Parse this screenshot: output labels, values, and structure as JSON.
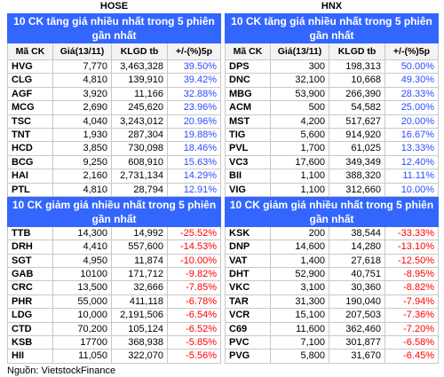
{
  "colors": {
    "title_bar": "#3366ff",
    "title_text": "#ffffff"
  },
  "chart_data": [
    {
      "type": "table",
      "exchange": "HOSE",
      "columns": [
        "Mã CK",
        "Giá(13/11)",
        "KLGD tb",
        "+/-(%)5p"
      ],
      "sections": [
        {
          "title": "10 CK tăng giá nhiều nhất trong 5 phiên\ngần nhất",
          "value_color": "#2b4cff",
          "rows": [
            [
              "HVG",
              "7,770",
              "3,463,328",
              "39.50%"
            ],
            [
              "CLG",
              "4,810",
              "139,910",
              "39.42%"
            ],
            [
              "AGF",
              "3,920",
              "11,166",
              "32.88%"
            ],
            [
              "MCG",
              "2,690",
              "245,620",
              "23.96%"
            ],
            [
              "TSC",
              "4,040",
              "3,243,012",
              "20.96%"
            ],
            [
              "TNT",
              "1,930",
              "287,304",
              "19.88%"
            ],
            [
              "HCD",
              "3,850",
              "730,098",
              "18.46%"
            ],
            [
              "BCG",
              "9,250",
              "608,910",
              "15.63%"
            ],
            [
              "HAI",
              "2,160",
              "2,731,134",
              "14.29%"
            ],
            [
              "PTL",
              "4,810",
              "28,794",
              "12.91%"
            ]
          ]
        },
        {
          "title": "10 CK giảm giá nhiều nhất trong 5 phiên\ngần nhất",
          "value_color": "#ff0000",
          "rows": [
            [
              "TTB",
              "14,300",
              "14,992",
              "-25.52%"
            ],
            [
              "DRH",
              "4,410",
              "557,600",
              "-14.53%"
            ],
            [
              "SGT",
              "4,950",
              "11,874",
              "-10.00%"
            ],
            [
              "GAB",
              "10100",
              "171,712",
              "-9.82%"
            ],
            [
              "CRC",
              "13,500",
              "32,666",
              "-7.85%"
            ],
            [
              "PHR",
              "55,000",
              "411,118",
              "-6.78%"
            ],
            [
              "LDG",
              "10,000",
              "2,191,506",
              "-6.54%"
            ],
            [
              "CTD",
              "70,200",
              "105,124",
              "-6.52%"
            ],
            [
              "KSB",
              "17700",
              "368,938",
              "-5.85%"
            ],
            [
              "HII",
              "11,050",
              "322,070",
              "-5.56%"
            ]
          ]
        }
      ]
    },
    {
      "type": "table",
      "exchange": "HNX",
      "columns": [
        "Mã CK",
        "Giá(13/11)",
        "KLGD tb",
        "+/-(%)5p"
      ],
      "sections": [
        {
          "title": "10 CK tăng giá nhiều nhất trong 5 phiên\ngần nhất",
          "value_color": "#2b4cff",
          "rows": [
            [
              "DPS",
              "300",
              "198,313",
              "50.00%"
            ],
            [
              "DNC",
              "32,100",
              "10,668",
              "49.30%"
            ],
            [
              "MBG",
              "53,900",
              "266,390",
              "28.33%"
            ],
            [
              "ACM",
              "500",
              "54,582",
              "25.00%"
            ],
            [
              "MST",
              "4,200",
              "517,627",
              "20.00%"
            ],
            [
              "TIG",
              "5,600",
              "914,920",
              "16.67%"
            ],
            [
              "PVL",
              "1,700",
              "61,025",
              "13.33%"
            ],
            [
              "VC3",
              "17,600",
              "349,349",
              "12.40%"
            ],
            [
              "BII",
              "1,100",
              "388,320",
              "11.11%"
            ],
            [
              "VIG",
              "1,100",
              "312,660",
              "10.00%"
            ]
          ]
        },
        {
          "title": "10 CK giảm giá nhiều nhất trong 5 phiên\ngần nhất",
          "value_color": "#ff0000",
          "rows": [
            [
              "KSK",
              "200",
              "38,544",
              "-33.33%"
            ],
            [
              "DNP",
              "14,600",
              "14,280",
              "-13.10%"
            ],
            [
              "VAT",
              "1,400",
              "27,618",
              "-12.50%"
            ],
            [
              "DHT",
              "52,900",
              "40,751",
              "-8.95%"
            ],
            [
              "VKC",
              "3,100",
              "30,360",
              "-8.82%"
            ],
            [
              "TAR",
              "31,300",
              "190,040",
              "-7.94%"
            ],
            [
              "VCR",
              "15,100",
              "207,503",
              "-7.36%"
            ],
            [
              "C69",
              "11,600",
              "362,460",
              "-7.20%"
            ],
            [
              "PVC",
              "7,100",
              "301,877",
              "-6.58%"
            ],
            [
              "PVG",
              "5,800",
              "31,670",
              "-6.45%"
            ]
          ]
        }
      ]
    }
  ],
  "footer": "Nguồn: VietstockFinance"
}
